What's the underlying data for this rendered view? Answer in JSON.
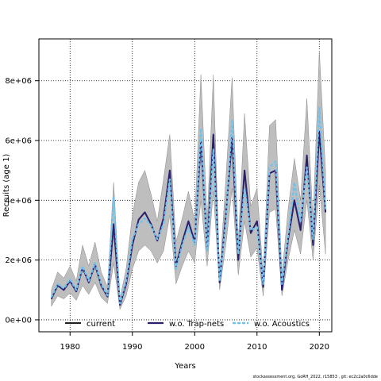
{
  "chart_data": {
    "type": "line",
    "xlabel": "Years",
    "ylabel": "Recruits (age 1)",
    "xlim": [
      1975,
      2022
    ],
    "ylim": [
      -400000,
      9400000
    ],
    "x_ticks": [
      1980,
      1990,
      2000,
      2010,
      2020
    ],
    "x_tick_labels": [
      "1980",
      "1990",
      "2000",
      "2010",
      "2020"
    ],
    "y_ticks": [
      0,
      2000000,
      4000000,
      6000000,
      8000000
    ],
    "y_tick_labels": [
      "0e+00",
      "2e+06",
      "4e+06",
      "6e+06",
      "8e+06"
    ],
    "grid": "dotted",
    "legend_position": "bottom",
    "x": [
      1977,
      1978,
      1979,
      1980,
      1981,
      1982,
      1983,
      1984,
      1985,
      1986,
      1987,
      1988,
      1989,
      1990,
      1991,
      1992,
      1993,
      1994,
      1995,
      1996,
      1997,
      1998,
      1999,
      2000,
      2001,
      2002,
      2003,
      2004,
      2005,
      2006,
      2007,
      2008,
      2009,
      2010,
      2011,
      2012,
      2013,
      2014,
      2015,
      2016,
      2017,
      2018,
      2019,
      2020,
      2021
    ],
    "band": {
      "color": "#bebebe",
      "lower": [
        450000,
        800000,
        700000,
        900000,
        650000,
        1150000,
        850000,
        1250000,
        750000,
        550000,
        1900000,
        350000,
        800000,
        1700000,
        2300000,
        2500000,
        2300000,
        1900000,
        2300000,
        3500000,
        1200000,
        1800000,
        2300000,
        1900000,
        4000000,
        1800000,
        4300000,
        1000000,
        2500000,
        4400000,
        1500000,
        3300000,
        2100000,
        2400000,
        800000,
        3600000,
        3700000,
        800000,
        2000000,
        3000000,
        2200000,
        4000000,
        2000000,
        4500000,
        2200000
      ],
      "upper": [
        1000000,
        1600000,
        1400000,
        1800000,
        1300000,
        2500000,
        1800000,
        2600000,
        1600000,
        1100000,
        4600000,
        700000,
        1700000,
        3500000,
        4600000,
        5000000,
        4200000,
        3300000,
        4700000,
        6200000,
        2600000,
        3400000,
        4300000,
        3300000,
        8200000,
        3300000,
        8200000,
        1500000,
        4700000,
        8100000,
        2600000,
        6900000,
        3800000,
        4400000,
        1500000,
        6500000,
        6700000,
        1500000,
        3700000,
        5400000,
        4000000,
        7400000,
        3300000,
        9000000,
        5000000
      ]
    },
    "series": [
      {
        "name": "current",
        "color": "#000000",
        "dash": "",
        "width": 1.5,
        "values": [
          700000,
          1150000,
          1000000,
          1300000,
          950000,
          1750000,
          1250000,
          1850000,
          1150000,
          780000,
          3200000,
          500000,
          1200000,
          2500000,
          3350000,
          3600000,
          3200000,
          2650000,
          3400000,
          5000000,
          1800000,
          2600000,
          3300000,
          2600000,
          6000000,
          2400000,
          6200000,
          1250000,
          3500000,
          6100000,
          2000000,
          5000000,
          2900000,
          3300000,
          1100000,
          4900000,
          5000000,
          1000000,
          2700000,
          4000000,
          3000000,
          5500000,
          2500000,
          6300000,
          3600000
        ]
      },
      {
        "name": "w.o. Trap-nets",
        "color": "#2b1f6e",
        "dash": "",
        "width": 2,
        "values": [
          700000,
          1150000,
          1000000,
          1300000,
          950000,
          1750000,
          1250000,
          1850000,
          1150000,
          780000,
          3200000,
          500000,
          1200000,
          2500000,
          3350000,
          3600000,
          3200000,
          2650000,
          3400000,
          5000000,
          1800000,
          2600000,
          3300000,
          2600000,
          6000000,
          2400000,
          6200000,
          1250000,
          3500000,
          6100000,
          2000000,
          5000000,
          2900000,
          3300000,
          1100000,
          4900000,
          5000000,
          1000000,
          2700000,
          4000000,
          3000000,
          5500000,
          2500000,
          6300000,
          3600000
        ]
      },
      {
        "name": "w.o. Acoustics",
        "color": "#6ec3ee",
        "dash": "4,2",
        "width": 2.2,
        "values": [
          750000,
          1200000,
          1050000,
          1350000,
          1000000,
          1800000,
          1300000,
          1900000,
          1200000,
          820000,
          4100000,
          550000,
          1300000,
          2700000,
          3200000,
          3400000,
          3150000,
          2700000,
          3200000,
          4700000,
          1700000,
          2500000,
          3100000,
          2500000,
          6400000,
          2300000,
          5700000,
          1300000,
          3300000,
          6700000,
          2200000,
          4400000,
          3000000,
          3100000,
          1200000,
          5100000,
          5300000,
          1200000,
          2800000,
          4600000,
          3300000,
          5100000,
          2700000,
          7100000,
          3700000
        ]
      }
    ]
  },
  "footer": "stockassessment.org, GoRH_2022, r15853 , git: ec2c2a0c6dde"
}
